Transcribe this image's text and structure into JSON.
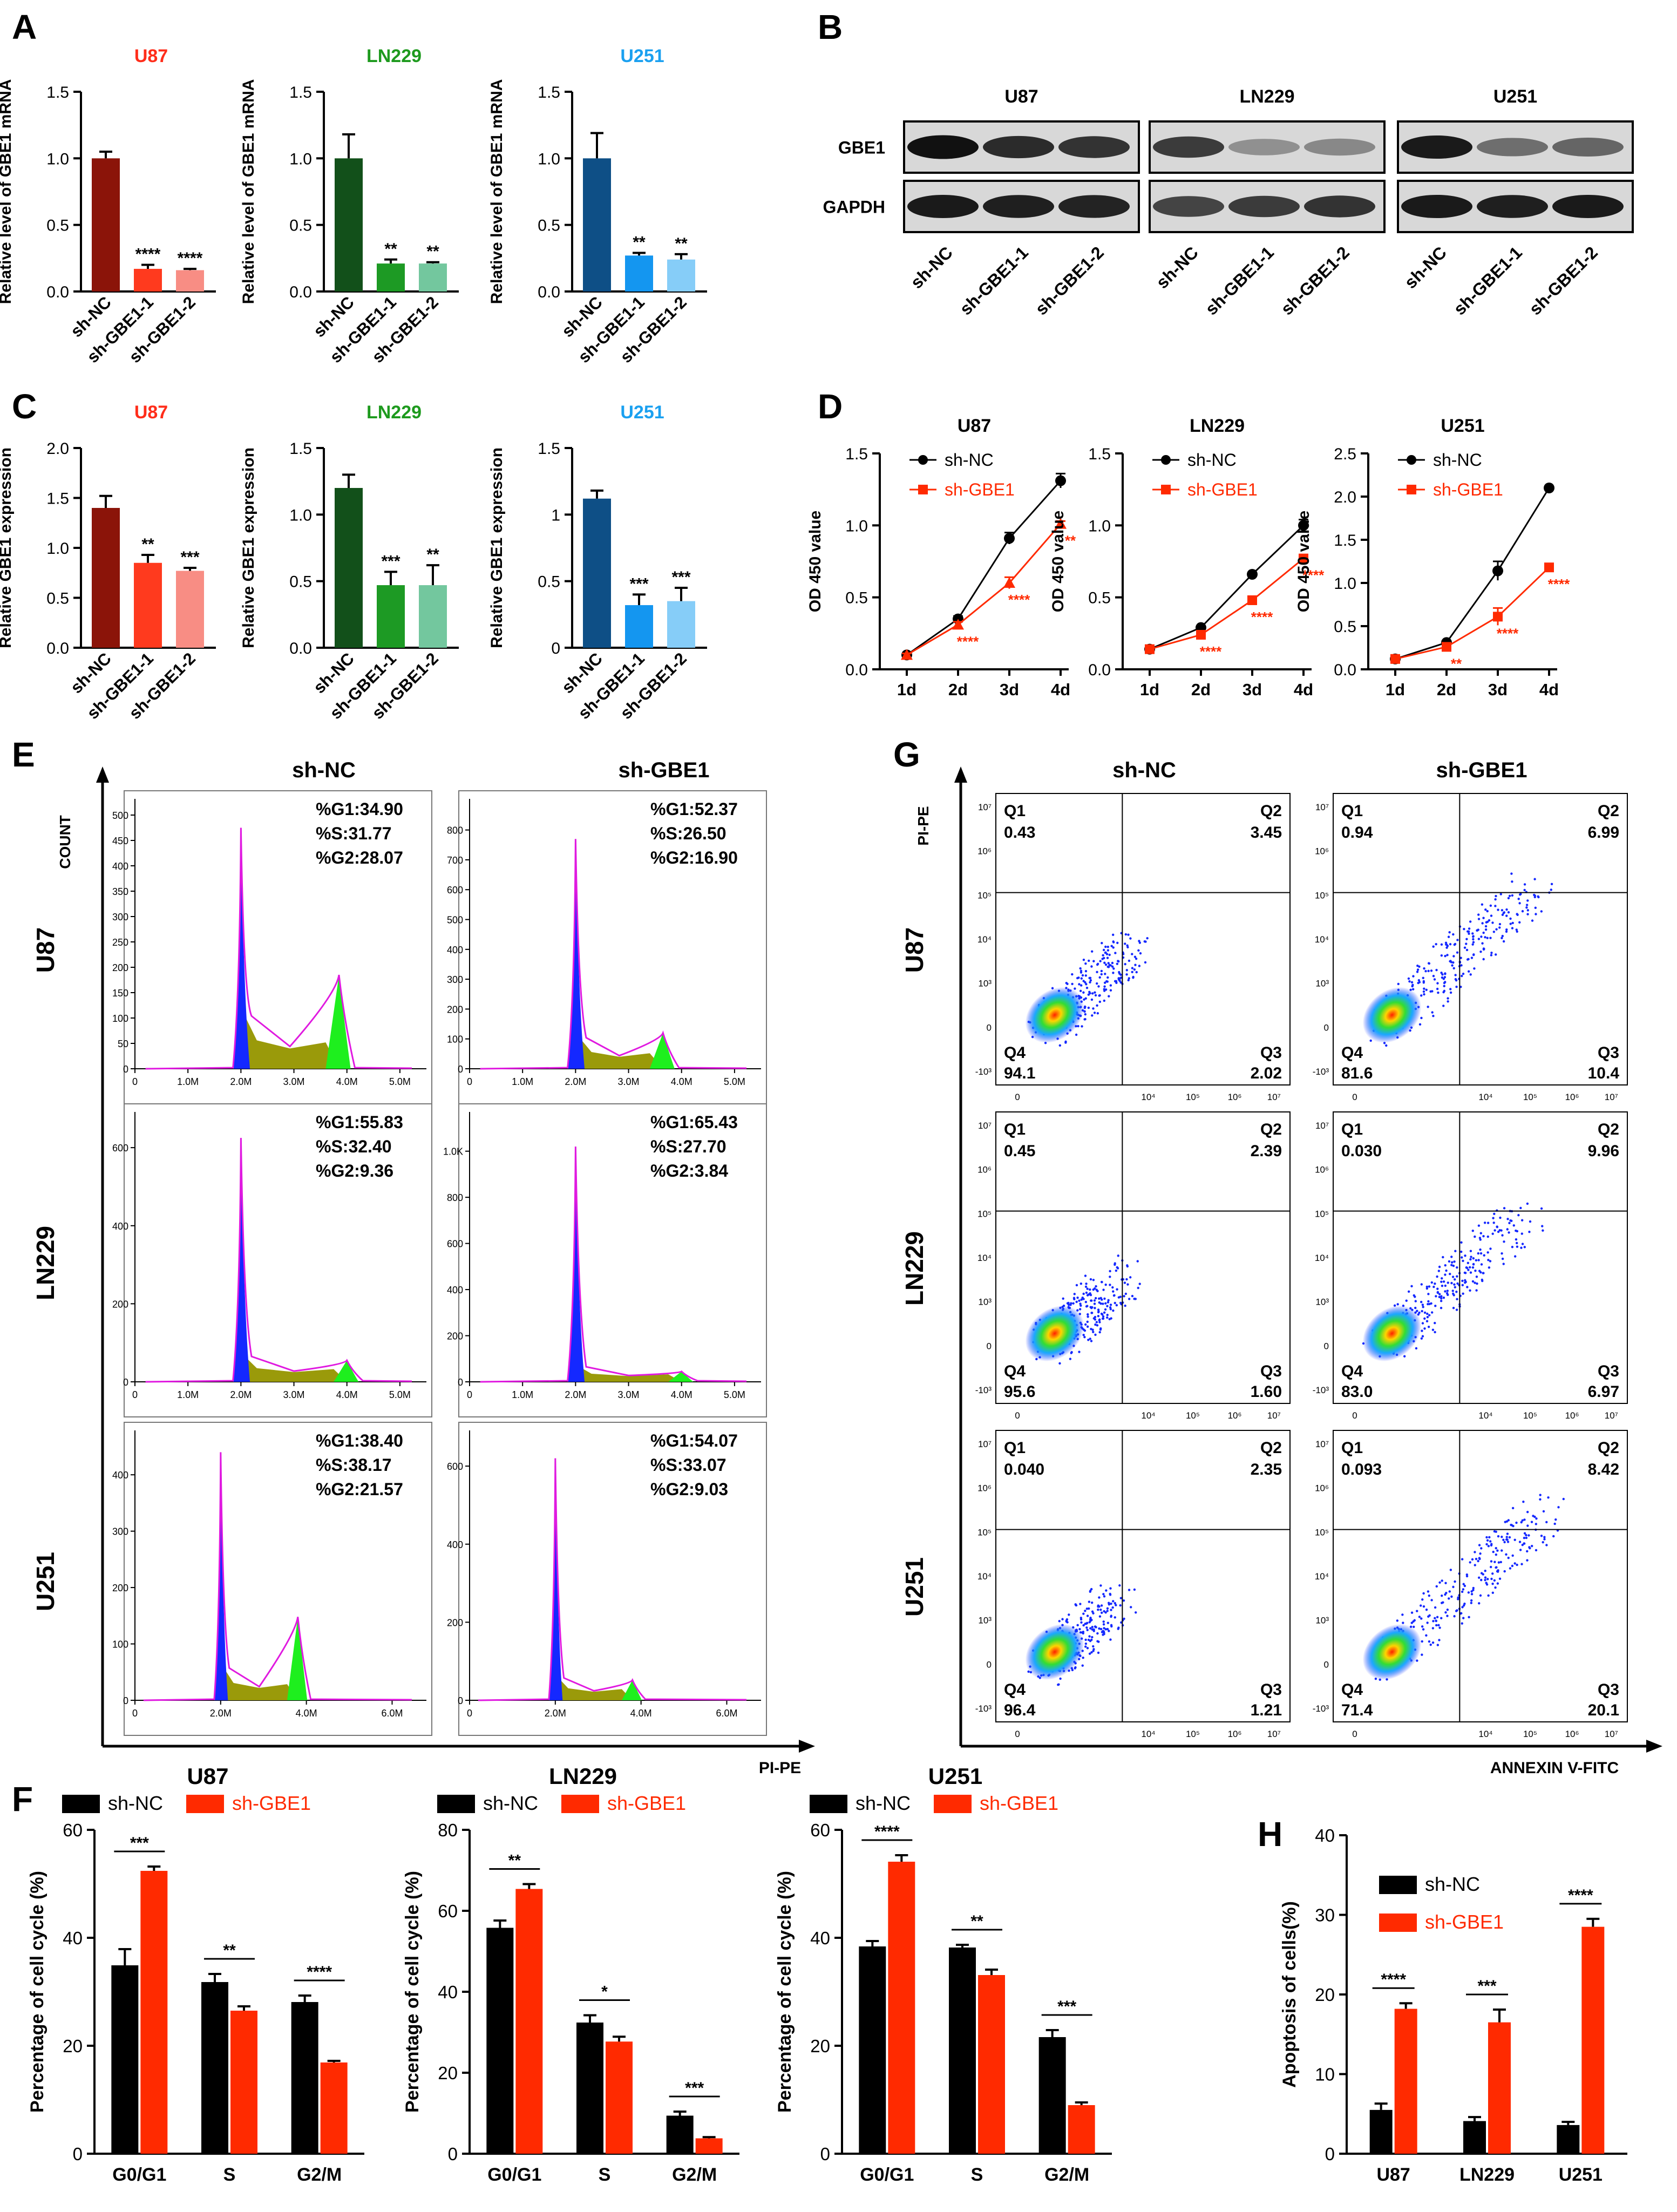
{
  "colors": {
    "black": "#000000",
    "red": "#ff2a00",
    "U87_title": "#ff2d1a",
    "LN229_title": "#1e9a1e",
    "U251_title": "#1aa0f0",
    "u87_dark": "#8b1409",
    "u87_mid": "#ff3a1e",
    "u87_light": "#f88d84",
    "ln229_dark": "#12501a",
    "ln229_mid": "#1d9a24",
    "ln229_light": "#73c79e",
    "u251_dark": "#0e4f86",
    "u251_mid": "#1496f0",
    "u251_light": "#86cdf8",
    "hist_blue": "#1428ff",
    "hist_green": "#1eef1e",
    "hist_olive": "#9a9a0a",
    "hist_magenta": "#e01ae0",
    "gridline": "#000000"
  },
  "panels": {
    "A": "A",
    "B": "B",
    "C": "C",
    "D": "D",
    "E": "E",
    "F": "F",
    "G": "G",
    "H": "H"
  },
  "groups_knock": [
    "sh-NC",
    "sh-GBE1-1",
    "sh-GBE1-2"
  ],
  "chart_data": [
    {
      "panel": "A",
      "type": "bar",
      "ylabel": "Relative level of GBE1 mRNA",
      "charts": [
        {
          "title": "U87",
          "values": [
            1.0,
            0.17,
            0.16
          ],
          "errors": [
            0.05,
            0.03,
            0.01
          ],
          "sig": [
            "",
            "****",
            "****"
          ],
          "ylim": [
            0,
            1.5
          ],
          "ticks": [
            "0.0",
            "0.5",
            "1.0",
            "1.5"
          ]
        },
        {
          "title": "LN229",
          "values": [
            1.0,
            0.21,
            0.21
          ],
          "errors": [
            0.18,
            0.03,
            0.01
          ],
          "sig": [
            "",
            "**",
            "**"
          ],
          "ylim": [
            0,
            1.5
          ],
          "ticks": [
            "0.0",
            "0.5",
            "1.0",
            "1.5"
          ]
        },
        {
          "title": "U251",
          "values": [
            1.0,
            0.27,
            0.24
          ],
          "errors": [
            0.19,
            0.02,
            0.04
          ],
          "sig": [
            "",
            "**",
            "**"
          ],
          "ylim": [
            0,
            1.5
          ],
          "ticks": [
            "0.0",
            "0.5",
            "1.0",
            "1.5"
          ]
        }
      ]
    },
    {
      "panel": "C",
      "type": "bar",
      "ylabel": "Relative  GBE1 expression",
      "charts": [
        {
          "title": "U87",
          "values": [
            1.4,
            0.85,
            0.77
          ],
          "errors": [
            0.12,
            0.08,
            0.03
          ],
          "sig": [
            "",
            "**",
            "***"
          ],
          "ylim": [
            0,
            2.0
          ],
          "ticks": [
            "0.0",
            "0.5",
            "1.0",
            "1.5",
            "2.0"
          ]
        },
        {
          "title": "LN229",
          "values": [
            1.2,
            0.47,
            0.47
          ],
          "errors": [
            0.1,
            0.1,
            0.15
          ],
          "sig": [
            "",
            "***",
            "**"
          ],
          "ylim": [
            0,
            1.5
          ],
          "ticks": [
            "0.0",
            "0.5",
            "1.0",
            "1.5"
          ]
        },
        {
          "title": "U251",
          "values": [
            1.12,
            0.32,
            0.35
          ],
          "errors": [
            0.06,
            0.08,
            0.1
          ],
          "sig": [
            "",
            "***",
            "***"
          ],
          "ylim": [
            0,
            1.5
          ],
          "ticks": [
            "0",
            "0.5",
            "1",
            "1.5"
          ]
        }
      ]
    },
    {
      "panel": "D",
      "type": "line",
      "ylabel": "OD 450 value",
      "x": [
        "1d",
        "2d",
        "3d",
        "4d"
      ],
      "legend": [
        "sh-NC",
        "sh-GBE1"
      ],
      "charts": [
        {
          "title": "U87",
          "ylim": [
            0,
            1.5
          ],
          "ticks": [
            "0.0",
            "0.5",
            "1.0",
            "1.5"
          ],
          "nc": [
            0.1,
            0.35,
            0.91,
            1.31
          ],
          "nc_err": [
            0.01,
            0.02,
            0.04,
            0.05
          ],
          "sh": [
            0.1,
            0.31,
            0.6,
            1.01
          ],
          "sh_err": [
            0.01,
            0.02,
            0.04,
            0.02
          ],
          "sig": [
            "",
            "****",
            "****",
            "**"
          ]
        },
        {
          "title": "LN229",
          "ylim": [
            0,
            1.5
          ],
          "ticks": [
            "0.0",
            "0.5",
            "1.0",
            "1.5"
          ],
          "nc": [
            0.14,
            0.29,
            0.66,
            1.0
          ],
          "nc_err": [
            0.01,
            0.01,
            0.01,
            0.04
          ],
          "sh": [
            0.14,
            0.24,
            0.48,
            0.77
          ],
          "sh_err": [
            0.01,
            0.01,
            0.01,
            0.02
          ],
          "sig": [
            "",
            "****",
            "****",
            "****"
          ]
        },
        {
          "title": "U251",
          "ylim": [
            0,
            2.5
          ],
          "ticks": [
            "0.0",
            "0.5",
            "1.0",
            "1.5",
            "2.0",
            "2.5"
          ],
          "nc": [
            0.12,
            0.31,
            1.14,
            2.1
          ],
          "nc_err": [
            0.01,
            0.01,
            0.11,
            0.01
          ],
          "sh": [
            0.12,
            0.26,
            0.61,
            1.18
          ],
          "sh_err": [
            0.01,
            0.01,
            0.1,
            0.02
          ],
          "sig": [
            "",
            "**",
            "****",
            "****"
          ]
        }
      ]
    },
    {
      "panel": "E",
      "type": "histogram",
      "xlabel": "PI-PE",
      "ylabel": "COUNT",
      "columns": [
        "sh-NC",
        "sh-GBE1"
      ],
      "rows": [
        "U87",
        "LN229",
        "U251"
      ],
      "cells": [
        {
          "g1": "%G1:34.90",
          "s": "%S:31.77",
          "g2": "%G2:28.07",
          "ymax": 500,
          "yticks": [
            "0",
            "50",
            "100",
            "150",
            "200",
            "250",
            "300",
            "350",
            "400",
            "450",
            "500"
          ],
          "xticks": [
            "0",
            "1.0M",
            "2.0M",
            "3.0M",
            "4.0M",
            "5.0M"
          ],
          "xmax": 5.5,
          "g1pos": 2.0,
          "g1h": 475,
          "g2pos": 3.85,
          "g2h": 185,
          "s_level": 40
        },
        {
          "g1": "%G1:52.37",
          "s": "%S:26.50",
          "g2": "%G2:16.90",
          "ymax": 850,
          "yticks": [
            "0",
            "100",
            "200",
            "300",
            "400",
            "500",
            "600",
            "700",
            "800"
          ],
          "xticks": [
            "0",
            "1.0M",
            "2.0M",
            "3.0M",
            "4.0M",
            "5.0M"
          ],
          "xmax": 5.5,
          "g1pos": 2.0,
          "g1h": 770,
          "g2pos": 3.65,
          "g2h": 120,
          "s_level": 40
        },
        {
          "g1": "%G1:55.83",
          "s": "%S:32.40",
          "g2": "%G2:9.36",
          "ymax": 650,
          "yticks": [
            "0",
            "200",
            "400",
            "600"
          ],
          "xticks": [
            "0",
            "1.0M",
            "2.0M",
            "3.0M",
            "4.0M",
            "5.0M"
          ],
          "xmax": 5.5,
          "g1pos": 2.0,
          "g1h": 625,
          "g2pos": 4.0,
          "g2h": 55,
          "s_level": 25
        },
        {
          "g1": "%G1:65.43",
          "s": "%S:27.70",
          "g2": "%G2:3.84",
          "ymax": 1100,
          "yticks": [
            "0",
            "200",
            "400",
            "600",
            "800",
            "1.0K"
          ],
          "xticks": [
            "0",
            "1.0M",
            "2.0M",
            "3.0M",
            "4.0M",
            "5.0M"
          ],
          "xmax": 5.5,
          "g1pos": 2.0,
          "g1h": 1020,
          "g2pos": 4.0,
          "g2h": 45,
          "s_level": 25
        },
        {
          "g1": "%G1:38.40",
          "s": "%S:38.17",
          "g2": "%G2:21.57",
          "ymax": 450,
          "yticks": [
            "0",
            "100",
            "200",
            "300",
            "400"
          ],
          "xticks": [
            "0",
            "2.0M",
            "4.0M",
            "6.0M"
          ],
          "xmax": 6.8,
          "g1pos": 2.0,
          "g1h": 440,
          "g2pos": 3.8,
          "g2h": 148,
          "s_level": 22
        },
        {
          "g1": "%G1:54.07",
          "s": "%S:33.07",
          "g2": "%G2:9.03",
          "ymax": 650,
          "yticks": [
            "0",
            "200",
            "400",
            "600"
          ],
          "xticks": [
            "0",
            "2.0M",
            "4.0M",
            "6.0M"
          ],
          "xmax": 6.8,
          "g1pos": 2.0,
          "g1h": 620,
          "g2pos": 3.8,
          "g2h": 52,
          "s_level": 22
        }
      ]
    },
    {
      "panel": "F",
      "type": "grouped-bar",
      "ylabel": "Percentage of cell cycle (%)",
      "categories": [
        "G0/G1",
        "S",
        "G2/M"
      ],
      "legend": [
        "sh-NC",
        "sh-GBE1"
      ],
      "charts": [
        {
          "title": "U87",
          "ylim": [
            0,
            60
          ],
          "ticks": [
            "0",
            "20",
            "40",
            "60"
          ],
          "nc": [
            34.9,
            31.8,
            28.1
          ],
          "nc_err": [
            3,
            1.5,
            1.2
          ],
          "sh": [
            52.4,
            26.5,
            16.9
          ],
          "sh_err": [
            0.8,
            0.8,
            0.3
          ],
          "sig": [
            "***",
            "**",
            "****"
          ]
        },
        {
          "title": "LN229",
          "ylim": [
            0,
            80
          ],
          "ticks": [
            "0",
            "20",
            "40",
            "60",
            "80"
          ],
          "nc": [
            55.8,
            32.4,
            9.4
          ],
          "nc_err": [
            1.8,
            1.8,
            1
          ],
          "sh": [
            65.4,
            27.7,
            3.8
          ],
          "sh_err": [
            1.2,
            1.2,
            0.3
          ],
          "sig": [
            "**",
            "*",
            "***"
          ]
        },
        {
          "title": "U251",
          "ylim": [
            0,
            60
          ],
          "ticks": [
            "0",
            "20",
            "40",
            "60"
          ],
          "nc": [
            38.4,
            38.2,
            21.6
          ],
          "nc_err": [
            1,
            0.5,
            1.3
          ],
          "sh": [
            54.1,
            33.1,
            9.0
          ],
          "sh_err": [
            1.2,
            1,
            0.5
          ],
          "sig": [
            "****",
            "**",
            "***"
          ]
        }
      ]
    },
    {
      "panel": "G",
      "type": "scatter",
      "xlabel": "ANNEXIN V-FITC",
      "ylabel": "PI-PE",
      "columns": [
        "sh-NC",
        "sh-GBE1"
      ],
      "rows": [
        "U87",
        "LN229",
        "U251"
      ],
      "quad_labels": [
        "Q1",
        "Q2",
        "Q3",
        "Q4"
      ],
      "cells": [
        {
          "q1": "0.43",
          "q2": "3.45",
          "q3": "2.02",
          "q4": "94.1"
        },
        {
          "q1": "0.94",
          "q2": "6.99",
          "q3": "10.4",
          "q4": "81.6"
        },
        {
          "q1": "0.45",
          "q2": "2.39",
          "q3": "1.60",
          "q4": "95.6"
        },
        {
          "q1": "0.030",
          "q2": "9.96",
          "q3": "6.97",
          "q4": "83.0"
        },
        {
          "q1": "0.040",
          "q2": "2.35",
          "q3": "1.21",
          "q4": "96.4"
        },
        {
          "q1": "0.093",
          "q2": "8.42",
          "q3": "20.1",
          "q4": "71.4"
        }
      ],
      "yticks": [
        "-10³",
        "0",
        "10³",
        "10⁴",
        "10⁵",
        "10⁶",
        "10⁷"
      ],
      "xticks": [
        "0",
        "10⁴",
        "10⁵",
        "10⁶",
        "10⁷"
      ]
    },
    {
      "panel": "H",
      "type": "grouped-bar",
      "ylabel": "Apoptosis of cells(%)",
      "categories": [
        "U87",
        "LN229",
        "U251"
      ],
      "legend": [
        "sh-NC",
        "sh-GBE1"
      ],
      "ylim": [
        0,
        40
      ],
      "ticks": [
        "0",
        "10",
        "20",
        "30",
        "40"
      ],
      "nc": [
        5.5,
        4.1,
        3.6
      ],
      "nc_err": [
        0.8,
        0.5,
        0.4
      ],
      "sh": [
        18.2,
        16.5,
        28.5
      ],
      "sh_err": [
        0.7,
        1.6,
        1
      ],
      "sig": [
        "****",
        "***",
        "****"
      ]
    }
  ],
  "western": {
    "cells": [
      "U87",
      "LN229",
      "U251"
    ],
    "proteins": [
      "GBE1",
      "GAPDH"
    ],
    "lanes": [
      "sh-NC",
      "sh-GBE1-1",
      "sh-GBE1-2"
    ],
    "gbe1_intensity": [
      [
        1.0,
        0.85,
        0.8
      ],
      [
        0.75,
        0.25,
        0.3
      ],
      [
        0.95,
        0.45,
        0.5
      ]
    ],
    "gapdh_intensity": [
      [
        0.95,
        0.92,
        0.9
      ],
      [
        0.7,
        0.75,
        0.8
      ],
      [
        0.95,
        0.92,
        0.95
      ]
    ]
  }
}
